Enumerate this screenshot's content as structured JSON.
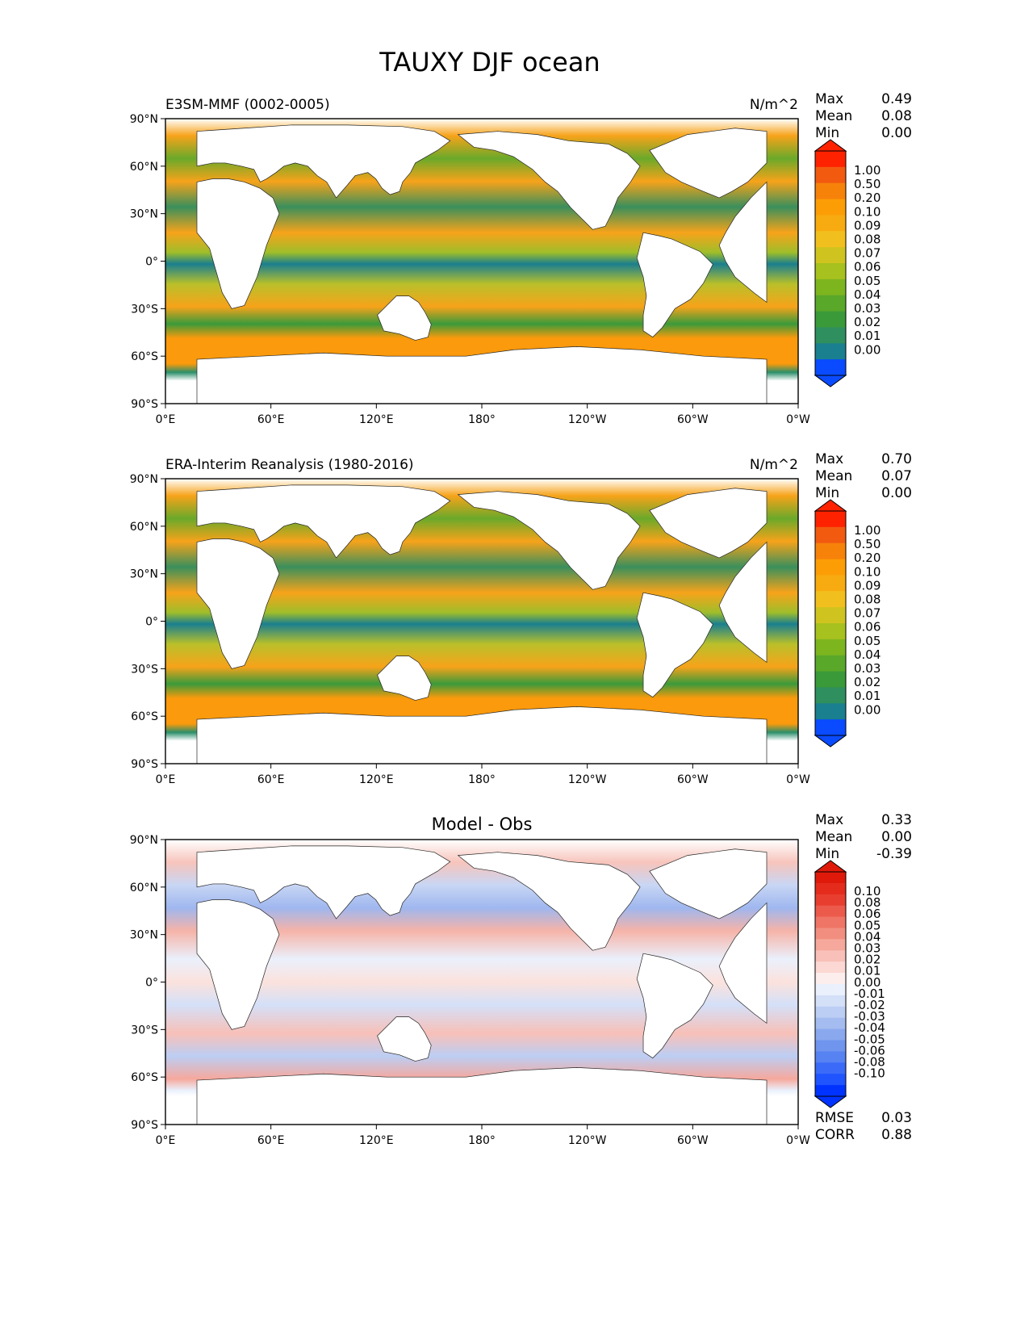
{
  "page_title": "TAUXY DJF ocean",
  "colors": {
    "seq_cbar": [
      "#0a4bff",
      "#1a7f8e",
      "#2f8f5e",
      "#3a9a3a",
      "#5aa82a",
      "#7db51f",
      "#a7c11e",
      "#cfc41f",
      "#f2c01e",
      "#f7ab10",
      "#fc9d06",
      "#f7820a",
      "#f25a10",
      "#ff2200"
    ],
    "diff_cbar": [
      "#0033ff",
      "#1f54ff",
      "#3a6af7",
      "#5682f2",
      "#6f95ee",
      "#8aa8ee",
      "#a4bcf0",
      "#bccef4",
      "#d4e0f8",
      "#eaf0fc",
      "#fdeeee",
      "#fbd8d3",
      "#f8c0b8",
      "#f6a89c",
      "#f28e80",
      "#ef7566",
      "#ec5a4c",
      "#e83e30",
      "#e42b1c",
      "#e01a0a"
    ],
    "land": "#ffffff",
    "frame": "#000000"
  },
  "chart_data": [
    {
      "type": "heatmap",
      "panel": "model",
      "title_left": "E3SM-MMF (0002-0005)",
      "units": "N/m^2",
      "title_center": "",
      "stats": {
        "max_label": "Max",
        "max": "0.49",
        "mean_label": "Mean",
        "mean": "0.08",
        "min_label": "Min",
        "min": "0.00"
      },
      "colorbar_levels": [
        "1.00",
        "0.50",
        "0.20",
        "0.10",
        "0.09",
        "0.08",
        "0.07",
        "0.06",
        "0.05",
        "0.04",
        "0.03",
        "0.02",
        "0.01",
        "0.00"
      ],
      "xticks": [
        "0°E",
        "60°E",
        "120°E",
        "180°",
        "120°W",
        "60°W",
        "0°W"
      ],
      "yticks": [
        "90°N",
        "60°N",
        "30°N",
        "0°",
        "30°S",
        "60°S",
        "90°S"
      ],
      "xlim": [
        0,
        360
      ],
      "ylim": [
        -90,
        90
      ]
    },
    {
      "type": "heatmap",
      "panel": "obs",
      "title_left": "ERA-Interim Reanalysis (1980-2016)",
      "units": "N/m^2",
      "title_center": "",
      "stats": {
        "max_label": "Max",
        "max": "0.70",
        "mean_label": "Mean",
        "mean": "0.07",
        "min_label": "Min",
        "min": "0.00"
      },
      "colorbar_levels": [
        "1.00",
        "0.50",
        "0.20",
        "0.10",
        "0.09",
        "0.08",
        "0.07",
        "0.06",
        "0.05",
        "0.04",
        "0.03",
        "0.02",
        "0.01",
        "0.00"
      ],
      "xticks": [
        "0°E",
        "60°E",
        "120°E",
        "180°",
        "120°W",
        "60°W",
        "0°W"
      ],
      "yticks": [
        "90°N",
        "60°N",
        "30°N",
        "0°",
        "30°S",
        "60°S",
        "90°S"
      ],
      "xlim": [
        0,
        360
      ],
      "ylim": [
        -90,
        90
      ]
    },
    {
      "type": "heatmap",
      "panel": "diff",
      "title_left": "",
      "units": "",
      "title_center": "Model - Obs",
      "stats": {
        "max_label": "Max",
        "max": "0.33",
        "mean_label": "Mean",
        "mean": "0.00",
        "min_label": "Min",
        "min": "-0.39"
      },
      "colorbar_levels": [
        "0.10",
        "0.08",
        "0.06",
        "0.05",
        "0.04",
        "0.03",
        "0.02",
        "0.01",
        "0.00",
        "-0.01",
        "-0.02",
        "-0.03",
        "-0.04",
        "-0.05",
        "-0.06",
        "-0.08",
        "-0.10"
      ],
      "xticks": [
        "0°E",
        "60°E",
        "120°E",
        "180°",
        "120°W",
        "60°W",
        "0°W"
      ],
      "yticks": [
        "90°N",
        "60°N",
        "30°N",
        "0°",
        "30°S",
        "60°S",
        "90°S"
      ],
      "xlim": [
        0,
        360
      ],
      "ylim": [
        -90,
        90
      ],
      "metrics": {
        "rmse_label": "RMSE",
        "rmse": "0.03",
        "corr_label": "CORR",
        "corr": "0.88"
      }
    }
  ]
}
